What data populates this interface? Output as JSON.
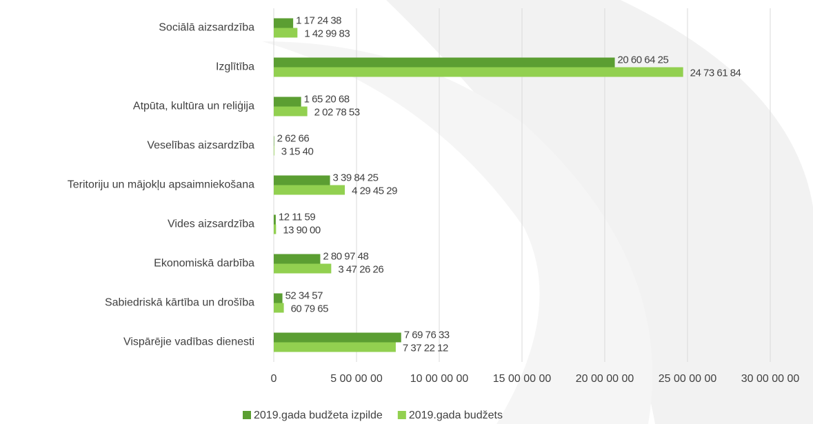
{
  "chart_data": {
    "type": "bar",
    "orientation": "horizontal",
    "categories": [
      "Sociālā aizsardzība",
      "Izglītība",
      "Atpūta, kultūra un reliģija",
      "Veselības aizsardzība",
      "Teritoriju un mājokļu apsaimniekošana",
      "Vides aizsardzība",
      "Ekonomiskā darbība",
      "Sabiedriskā kārtība un drošība",
      "Vispārējie vadības dienesti"
    ],
    "series": [
      {
        "name": "2019.gada budžeta izpilde",
        "color": "#5b9e32",
        "values": [
          1172438,
          20606425,
          1652068,
          26266,
          3398425,
          121159,
          2809748,
          523457,
          7697633
        ],
        "value_labels": [
          "1 17 24 38",
          "20 60 64 25",
          "1 65 20 68",
          "2 62 66",
          "3 39 84 25",
          "12 11 59",
          "2 80 97 48",
          "52 34 57",
          "7 69 76 33"
        ]
      },
      {
        "name": "2019.gada budžets",
        "color": "#92d050",
        "values": [
          1429983,
          24736184,
          2027853,
          31540,
          4294529,
          139000,
          3472626,
          607965,
          7372212
        ],
        "value_labels": [
          "1 42 99 83",
          "24 73 61 84",
          "2 02 78 53",
          "3 15 40",
          "4 29 45 29",
          "13 90 00",
          "3 47 26 26",
          "60 79 65",
          "7 37 22 12"
        ]
      }
    ],
    "xlim": [
      0,
      32000000
    ],
    "xticks": [
      0,
      {
        "value": 5000000,
        "label": "5 00 00 00"
      },
      {
        "value": 10000000,
        "label": "10 00 00 00"
      },
      {
        "value": 15000000,
        "label": "15 00 00 00"
      },
      {
        "value": 20000000,
        "label": "20 00 00 00"
      },
      {
        "value": 25000000,
        "label": "25 00 00 00"
      },
      {
        "value": 30000000,
        "label": "30 00 00 00"
      }
    ],
    "grid": true,
    "legend": "bottom"
  }
}
